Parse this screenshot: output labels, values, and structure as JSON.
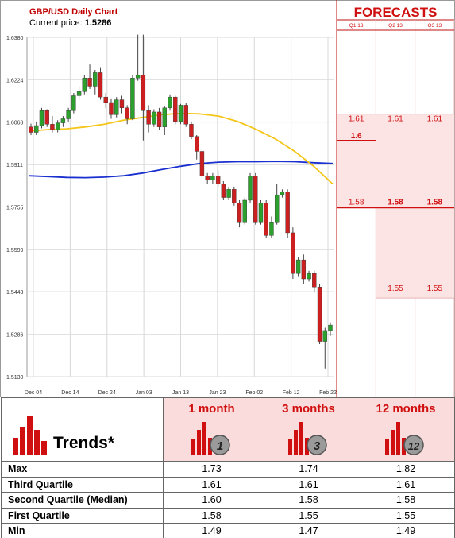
{
  "header": {
    "title": "GBP/USD Daily Chart",
    "price_label": "Current price:",
    "price_value": "1.5286"
  },
  "forecasts": {
    "title": "FORECASTS",
    "columns": [
      "Q1 13",
      "Q2 13",
      "Q3 13"
    ],
    "upper": [
      "1.61",
      "1.61",
      "1.61"
    ],
    "mid": "1.6",
    "lower": [
      "1.58",
      "1.58",
      "1.58"
    ],
    "bottom": [
      "",
      "1.55",
      "1.55"
    ]
  },
  "chart_data": {
    "type": "candlestick",
    "y_ticks": [
      "1.6380",
      "1.6224",
      "1.6068",
      "1.5911",
      "1.5755",
      "1.5599",
      "1.5443",
      "1.5286",
      "1.5130"
    ],
    "x_ticks": [
      "Dec 04",
      "Dec 14",
      "Dec 24",
      "Jan 03",
      "Jan 13",
      "Jan 23",
      "Feb 02",
      "Feb 12",
      "Feb 22"
    ],
    "ylim": [
      1.513,
      1.638
    ],
    "candles": [
      [
        1.605,
        1.6062,
        1.602,
        1.603
      ],
      [
        1.603,
        1.607,
        1.602,
        1.6055
      ],
      [
        1.6055,
        1.612,
        1.6045,
        1.611
      ],
      [
        1.611,
        1.6115,
        1.605,
        1.606
      ],
      [
        1.606,
        1.609,
        1.603,
        1.604
      ],
      [
        1.604,
        1.6075,
        1.603,
        1.6065
      ],
      [
        1.6065,
        1.609,
        1.605,
        1.608
      ],
      [
        1.608,
        1.612,
        1.607,
        1.611
      ],
      [
        1.611,
        1.6175,
        1.61,
        1.6165
      ],
      [
        1.6165,
        1.62,
        1.615,
        1.618
      ],
      [
        1.618,
        1.624,
        1.617,
        1.623
      ],
      [
        1.623,
        1.628,
        1.619,
        1.62
      ],
      [
        1.62,
        1.626,
        1.617,
        1.625
      ],
      [
        1.625,
        1.627,
        1.615,
        1.616
      ],
      [
        1.616,
        1.6175,
        1.612,
        1.614
      ],
      [
        1.614,
        1.6155,
        1.608,
        1.6095
      ],
      [
        1.6095,
        1.616,
        1.6085,
        1.615
      ],
      [
        1.615,
        1.6165,
        1.61,
        1.612
      ],
      [
        1.612,
        1.613,
        1.606,
        1.608
      ],
      [
        1.608,
        1.624,
        1.6075,
        1.623
      ],
      [
        1.623,
        1.639,
        1.622,
        1.624
      ],
      [
        1.624,
        1.639,
        1.6,
        1.611
      ],
      [
        1.611,
        1.613,
        1.603,
        1.606
      ],
      [
        1.606,
        1.6115,
        1.605,
        1.6105
      ],
      [
        1.6105,
        1.612,
        1.604,
        1.605
      ],
      [
        1.605,
        1.6125,
        1.602,
        1.612
      ],
      [
        1.612,
        1.617,
        1.611,
        1.616
      ],
      [
        1.616,
        1.6165,
        1.606,
        1.607
      ],
      [
        1.607,
        1.6135,
        1.606,
        1.613
      ],
      [
        1.613,
        1.614,
        1.605,
        1.606
      ],
      [
        1.606,
        1.607,
        1.6005,
        1.6015
      ],
      [
        1.6015,
        1.602,
        1.593,
        1.596
      ],
      [
        1.596,
        1.597,
        1.586,
        1.587
      ],
      [
        1.587,
        1.588,
        1.584,
        1.5855
      ],
      [
        1.5855,
        1.588,
        1.584,
        1.587
      ],
      [
        1.587,
        1.589,
        1.583,
        1.584
      ],
      [
        1.584,
        1.585,
        1.578,
        1.579
      ],
      [
        1.579,
        1.583,
        1.578,
        1.582
      ],
      [
        1.582,
        1.583,
        1.576,
        1.577
      ],
      [
        1.577,
        1.578,
        1.568,
        1.57
      ],
      [
        1.57,
        1.579,
        1.569,
        1.578
      ],
      [
        1.578,
        1.588,
        1.577,
        1.587
      ],
      [
        1.587,
        1.588,
        1.569,
        1.57
      ],
      [
        1.57,
        1.578,
        1.569,
        1.577
      ],
      [
        1.577,
        1.578,
        1.564,
        1.565
      ],
      [
        1.565,
        1.572,
        1.564,
        1.57
      ],
      [
        1.57,
        1.584,
        1.569,
        1.58
      ],
      [
        1.58,
        1.582,
        1.579,
        1.581
      ],
      [
        1.581,
        1.582,
        1.564,
        1.566
      ],
      [
        1.566,
        1.568,
        1.549,
        1.551
      ],
      [
        1.551,
        1.557,
        1.55,
        1.556
      ],
      [
        1.556,
        1.558,
        1.547,
        1.549
      ],
      [
        1.549,
        1.552,
        1.548,
        1.551
      ],
      [
        1.551,
        1.552,
        1.544,
        1.546
      ],
      [
        1.546,
        1.547,
        1.525,
        1.526
      ],
      [
        1.526,
        1.531,
        1.516,
        1.53
      ],
      [
        1.53,
        1.533,
        1.528,
        1.532
      ]
    ],
    "ma_short": [
      1.6035,
      1.604,
      1.6043,
      1.605,
      1.606,
      1.6075,
      1.6085,
      1.6095,
      1.61,
      1.6098,
      1.609,
      1.607,
      1.604,
      1.6005,
      1.596,
      1.5905,
      1.584
    ],
    "ma_long": [
      1.587,
      1.5867,
      1.5864,
      1.5863,
      1.5865,
      1.587,
      1.588,
      1.5893,
      1.5905,
      1.5915,
      1.592,
      1.5922,
      1.5922,
      1.5923,
      1.5922,
      1.5918,
      1.5915
    ]
  },
  "trends": {
    "heading": "Trends*",
    "columns": [
      {
        "label": "1 month",
        "badge": "1"
      },
      {
        "label": "3 months",
        "badge": "3"
      },
      {
        "label": "12 months",
        "badge": "12"
      }
    ],
    "rows": [
      {
        "label": "Max",
        "values": [
          "1.73",
          "1.74",
          "1.82"
        ]
      },
      {
        "label": "Third Quartile",
        "values": [
          "1.61",
          "1.61",
          "1.61"
        ]
      },
      {
        "label": "Second Quartile (Median)",
        "values": [
          "1.60",
          "1.58",
          "1.58"
        ]
      },
      {
        "label": "First Quartile",
        "values": [
          "1.58",
          "1.55",
          "1.55"
        ]
      },
      {
        "label": "Min",
        "values": [
          "1.49",
          "1.47",
          "1.49"
        ]
      }
    ]
  },
  "colors": {
    "up": "#2ca02c",
    "down": "#cc1f1f",
    "ma_short": "#f5c518",
    "ma_long": "#1a2fcf",
    "forecast_fill": "#fde4e4",
    "accent": "#d01010"
  }
}
